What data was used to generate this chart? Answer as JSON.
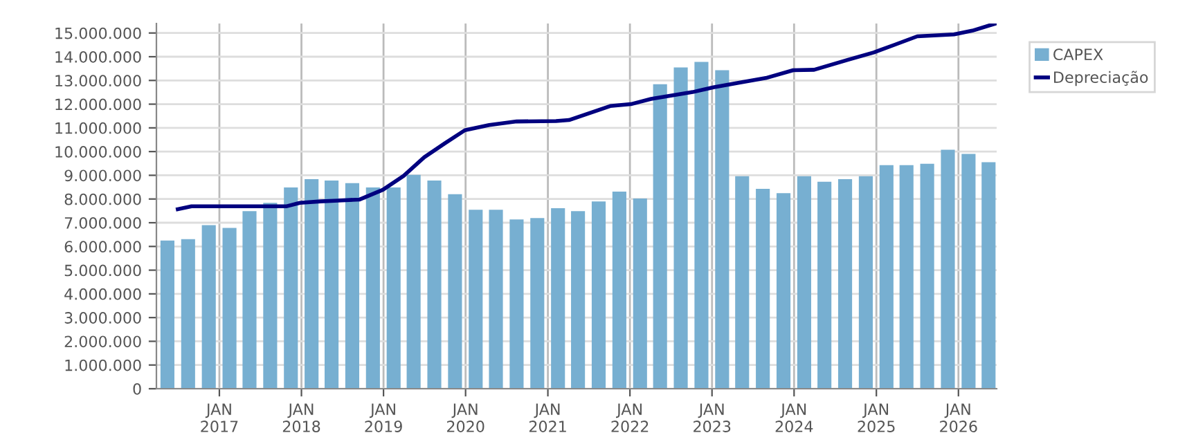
{
  "chart_data": {
    "type": "bar",
    "x": [
      "2016-05-15",
      "2016-08-15",
      "2016-11-15",
      "2017-02-15",
      "2017-05-15",
      "2017-08-15",
      "2017-11-15",
      "2018-02-15",
      "2018-05-15",
      "2018-08-15",
      "2018-11-15",
      "2019-02-15",
      "2019-05-15",
      "2019-08-15",
      "2019-11-15",
      "2020-02-15",
      "2020-05-15",
      "2020-08-15",
      "2020-11-15",
      "2021-02-15",
      "2021-05-15",
      "2021-08-15",
      "2021-11-15",
      "2022-02-15",
      "2022-05-15",
      "2022-08-15",
      "2022-11-15",
      "2023-02-15",
      "2023-05-15",
      "2023-08-15",
      "2023-11-15",
      "2024-02-15",
      "2024-05-15",
      "2024-08-15",
      "2024-11-15",
      "2025-02-15",
      "2025-05-15",
      "2025-08-15",
      "2025-11-15",
      "2026-02-15",
      "2026-05-15"
    ],
    "series": [
      {
        "name": "CAPEX",
        "color": "#77afd1",
        "values": [
          6250000,
          6310000,
          6900000,
          6780000,
          7490000,
          7840000,
          8490000,
          8840000,
          8780000,
          8670000,
          8490000,
          8490000,
          9020000,
          8780000,
          8200000,
          7550000,
          7550000,
          7140000,
          7200000,
          7610000,
          7490000,
          7900000,
          8310000,
          8020000,
          12840000,
          13550000,
          13780000,
          13430000,
          8960000,
          8430000,
          8250000,
          8960000,
          8730000,
          8840000,
          8960000,
          9430000,
          9430000,
          9490000,
          10080000,
          9900000,
          9550000
        ]
      },
      {
        "name": "Depreciação",
        "type": "line",
        "color": "#00007f",
        "x": [
          "2016-06-30",
          "2016-08-30",
          "2017-10-25",
          "2017-12-25",
          "2018-03-27",
          "2018-06-28",
          "2018-09-17",
          "2018-12-29",
          "2019-04-01",
          "2019-07-01",
          "2019-10-01",
          "2019-12-29",
          "2020-04-15",
          "2020-08-15",
          "2021-02-06",
          "2021-04-05",
          "2021-10-05",
          "2022-01-05",
          "2022-04-05",
          "2022-10-07",
          "2023-01-07",
          "2023-04-28",
          "2023-08-28",
          "2023-12-28",
          "2024-03-30",
          "2024-08-31",
          "2024-12-20",
          "2025-03-25",
          "2025-07-02",
          "2025-12-12",
          "2026-03-04",
          "2026-06-15"
        ],
        "values": [
          7570000,
          7690000,
          7690000,
          7840000,
          7900000,
          7940000,
          7980000,
          8390000,
          8980000,
          9760000,
          10350000,
          10900000,
          11120000,
          11270000,
          11290000,
          11330000,
          11920000,
          12000000,
          12220000,
          12510000,
          12710000,
          12900000,
          13100000,
          13430000,
          13450000,
          13880000,
          14180000,
          14510000,
          14860000,
          14940000,
          15100000,
          15400000
        ]
      }
    ],
    "xlim": [
      "2016-03-27",
      "2026-06-20"
    ],
    "xticks": [
      {
        "value": "2017-01-01",
        "label": "JAN\n2017"
      },
      {
        "value": "2018-01-01",
        "label": "JAN\n2018"
      },
      {
        "value": "2019-01-01",
        "label": "JAN\n2019"
      },
      {
        "value": "2020-01-01",
        "label": "JAN\n2020"
      },
      {
        "value": "2021-01-01",
        "label": "JAN\n2021"
      },
      {
        "value": "2022-01-01",
        "label": "JAN\n2022"
      },
      {
        "value": "2023-01-01",
        "label": "JAN\n2023"
      },
      {
        "value": "2024-01-01",
        "label": "JAN\n2024"
      },
      {
        "value": "2025-01-01",
        "label": "JAN\n2025"
      },
      {
        "value": "2026-01-01",
        "label": "JAN\n2026"
      }
    ],
    "ylim": [
      0,
      15400000
    ],
    "yticks": [
      0,
      {
        "value": 1000000,
        "label": "1.000.000"
      },
      {
        "value": 2000000,
        "label": "2.000.000"
      },
      {
        "value": 3000000,
        "label": "3.000.000"
      },
      {
        "value": 4000000,
        "label": "4.000.000"
      },
      {
        "value": 5000000,
        "label": "5.000.000"
      },
      {
        "value": 6000000,
        "label": "6.000.000"
      },
      {
        "value": 7000000,
        "label": "7.000.000"
      },
      {
        "value": 8000000,
        "label": "8.000.000"
      },
      {
        "value": 9000000,
        "label": "9.000.000"
      },
      {
        "value": 10000000,
        "label": "10.000.000"
      },
      {
        "value": 11000000,
        "label": "11.000.000"
      },
      {
        "value": 12000000,
        "label": "12.000.000"
      },
      {
        "value": 13000000,
        "label": "13.000.000"
      },
      {
        "value": 14000000,
        "label": "14.000.000"
      },
      {
        "value": 15000000,
        "label": "15.000.000"
      }
    ],
    "grid": true,
    "legend": "top right"
  }
}
